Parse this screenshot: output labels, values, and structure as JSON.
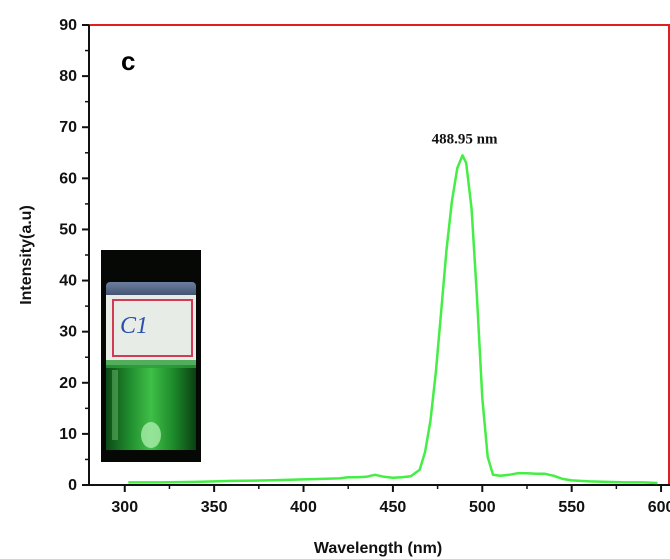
{
  "chart_data": {
    "type": "line",
    "panel_label": "c",
    "xlabel": "Wavelength (nm)",
    "ylabel": "Intensity(a.u)",
    "xlim": [
      280,
      605
    ],
    "ylim": [
      0,
      90
    ],
    "xticks": [
      300,
      350,
      400,
      450,
      500,
      550,
      600
    ],
    "yticks": [
      0,
      10,
      20,
      30,
      40,
      50,
      60,
      70,
      80,
      90
    ],
    "grid": false,
    "annotation": {
      "text": "488.95 nm",
      "x": 488.95,
      "y": 64.5
    },
    "series": [
      {
        "color": "#44ee44",
        "x": [
          302,
          320,
          340,
          360,
          380,
          400,
          410,
          420,
          425,
          430,
          435,
          440,
          445,
          450,
          455,
          460,
          465,
          468,
          471,
          474,
          477,
          480,
          483,
          486,
          488.95,
          491,
          494,
          497,
          500,
          503,
          506,
          510,
          515,
          520,
          525,
          530,
          535,
          540,
          545,
          550,
          560,
          570,
          580,
          590,
          598
        ],
        "y": [
          0.5,
          0.5,
          0.6,
          0.8,
          0.9,
          1.1,
          1.2,
          1.3,
          1.5,
          1.5,
          1.6,
          2.0,
          1.6,
          1.4,
          1.5,
          1.7,
          3.0,
          6.5,
          12.5,
          22.0,
          34.0,
          46.0,
          55.5,
          62.0,
          64.5,
          63.0,
          54.0,
          37.0,
          17.0,
          5.5,
          2.0,
          1.8,
          2.0,
          2.3,
          2.3,
          2.2,
          2.2,
          1.8,
          1.2,
          0.9,
          0.7,
          0.6,
          0.5,
          0.5,
          0.4
        ]
      }
    ],
    "inset": {
      "kind": "photo",
      "subject": "glass vial with green solution",
      "label_text": "C1"
    }
  }
}
